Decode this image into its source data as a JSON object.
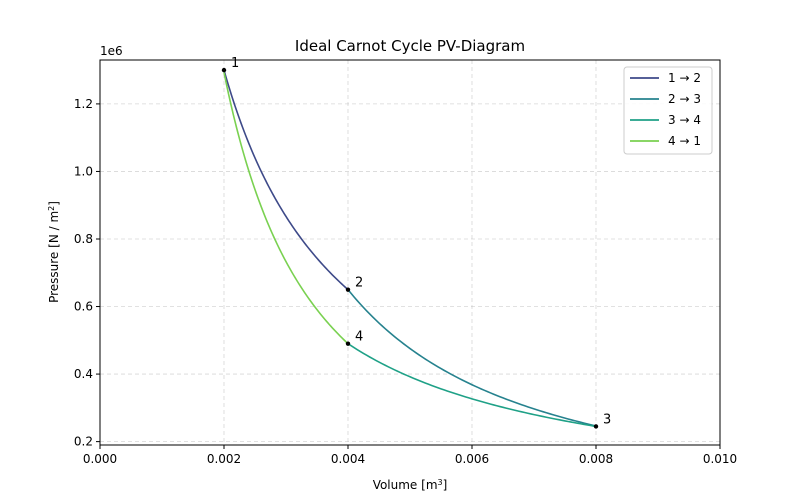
{
  "chart_data": {
    "type": "line",
    "title": "Ideal Carnot Cycle PV-Diagram",
    "xlabel": {
      "main": "Volume [m",
      "sup": "3",
      "tail": "]"
    },
    "ylabel": {
      "main": "Pressure [N / m",
      "sup": "2",
      "tail": "]"
    },
    "y_offset_label": "1e6",
    "xlim": [
      0.0,
      0.01
    ],
    "ylim": [
      0.19,
      1.33
    ],
    "xticks": [
      {
        "value": 0.0,
        "label": "0.000"
      },
      {
        "value": 0.002,
        "label": "0.002"
      },
      {
        "value": 0.004,
        "label": "0.004"
      },
      {
        "value": 0.006,
        "label": "0.006"
      },
      {
        "value": 0.008,
        "label": "0.008"
      },
      {
        "value": 0.01,
        "label": "0.010"
      }
    ],
    "yticks": [
      {
        "value": 0.2,
        "label": "0.2"
      },
      {
        "value": 0.4,
        "label": "0.4"
      },
      {
        "value": 0.6,
        "label": "0.6"
      },
      {
        "value": 0.8,
        "label": "0.8"
      },
      {
        "value": 1.0,
        "label": "1.0"
      },
      {
        "value": 1.2,
        "label": "1.2"
      }
    ],
    "grid": true,
    "legend_position": "top-right",
    "states": [
      {
        "label": "1",
        "V": 0.002,
        "P": 1.3
      },
      {
        "label": "2",
        "V": 0.004,
        "P": 0.65
      },
      {
        "label": "3",
        "V": 0.008,
        "P": 0.245
      },
      {
        "label": "4",
        "V": 0.004,
        "P": 0.49
      }
    ],
    "series": [
      {
        "name": "1 → 2",
        "from": 0,
        "to": 1,
        "exponent": 1.0,
        "color": "#3e4a89"
      },
      {
        "name": "2 → 3",
        "from": 1,
        "to": 2,
        "exponent": 1.4,
        "color": "#26828e"
      },
      {
        "name": "3 → 4",
        "from": 2,
        "to": 3,
        "exponent": 1.0,
        "color": "#1fa187"
      },
      {
        "name": "4 → 1",
        "from": 3,
        "to": 0,
        "exponent": 1.4,
        "color": "#7ad151"
      }
    ]
  }
}
